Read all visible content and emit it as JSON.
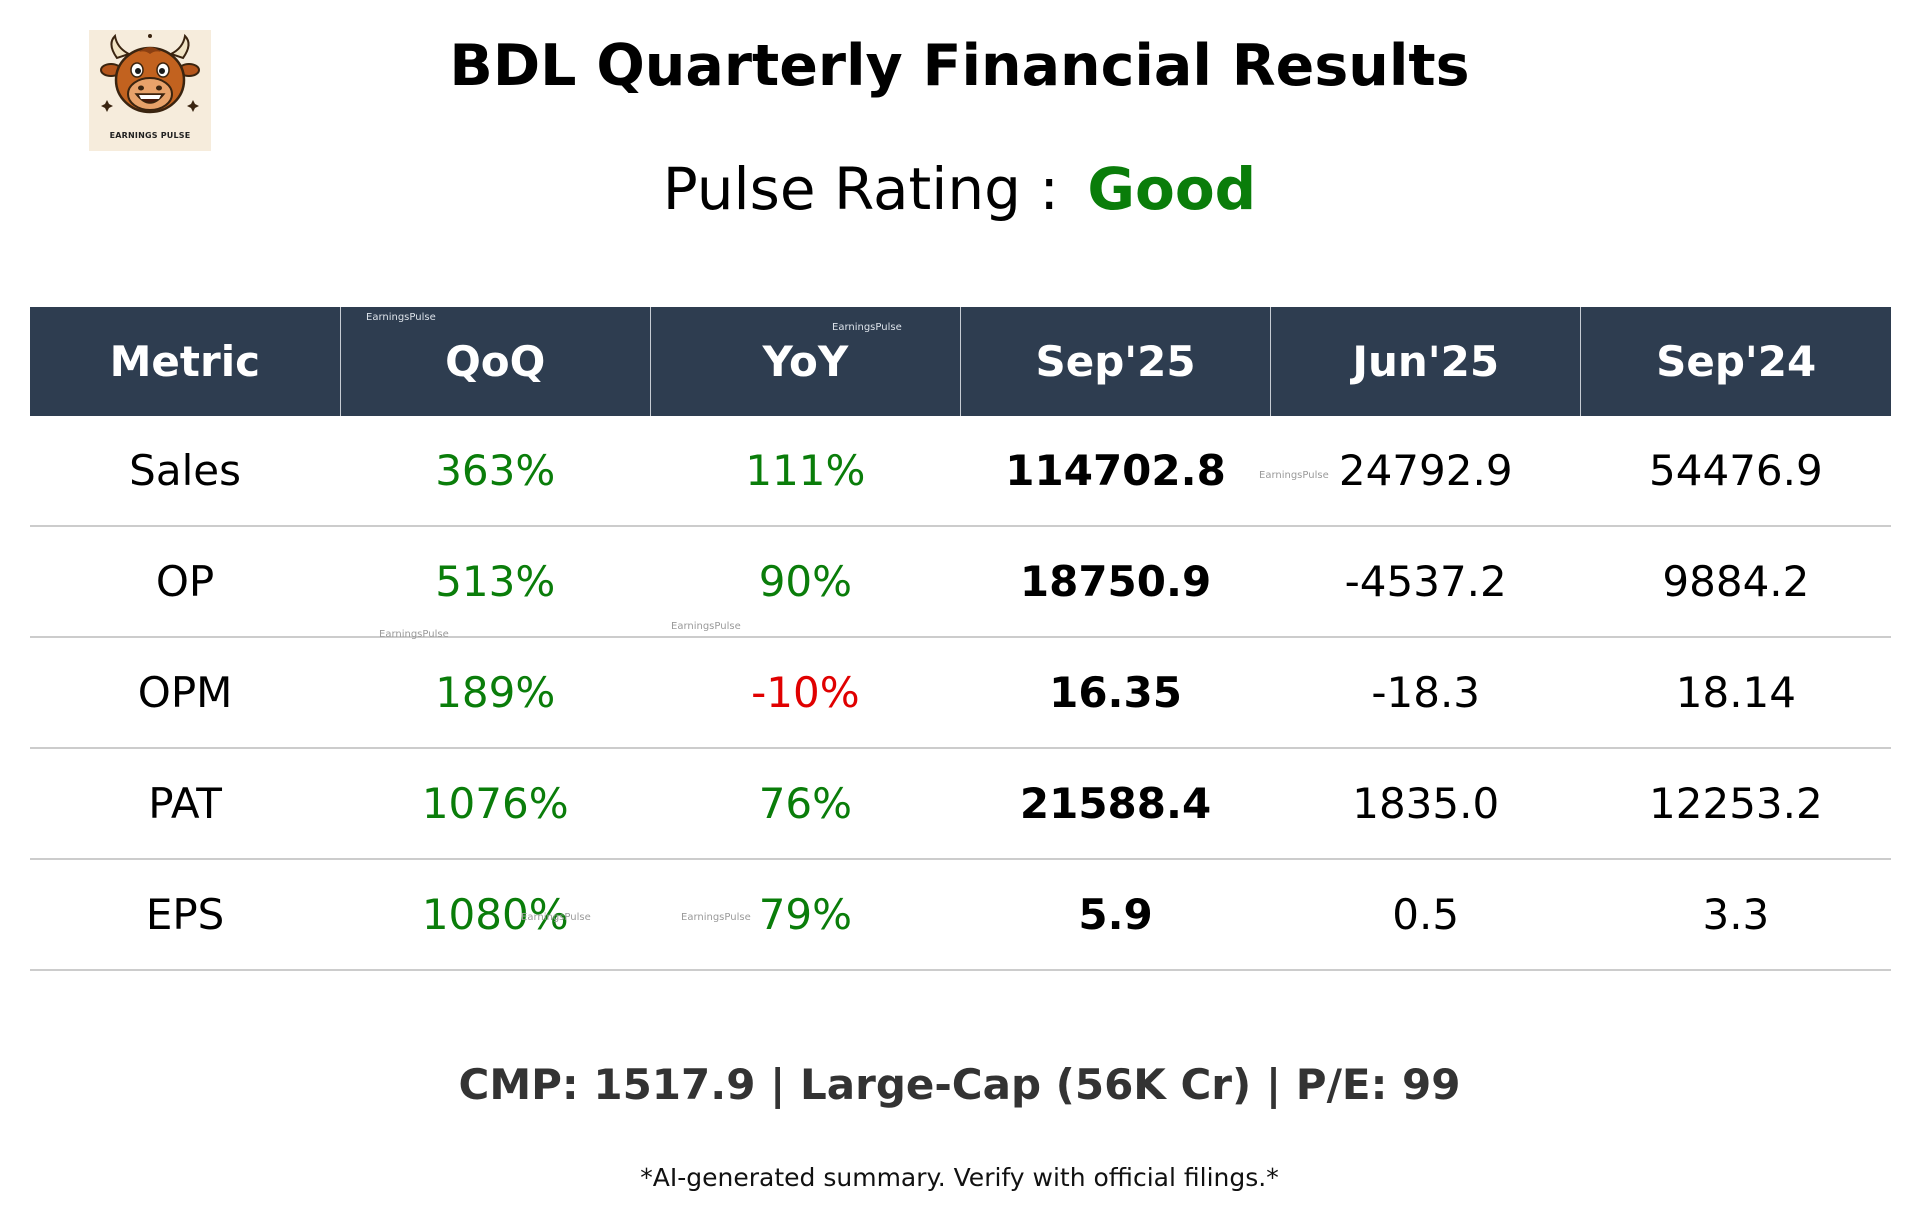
{
  "logo": {
    "text": "EARNINGS PULSE",
    "icon": "bull-mascot-icon"
  },
  "title": "BDL Quarterly Financial Results",
  "rating": {
    "label": "Pulse Rating :",
    "value": "Good",
    "value_color": "#0a7d0a"
  },
  "table": {
    "headers": [
      "Metric",
      "QoQ",
      "YoY",
      "Sep'25",
      "Jun'25",
      "Sep'24"
    ],
    "header_bg": "#2e3d50",
    "rows": [
      {
        "metric": "Sales",
        "qoq": "363%",
        "yoy": "111%",
        "sep25": "114702.8",
        "jun25": "24792.9",
        "sep24": "54476.9",
        "qoq_status": "positive",
        "yoy_status": "positive"
      },
      {
        "metric": "OP",
        "qoq": "513%",
        "yoy": "90%",
        "sep25": "18750.9",
        "jun25": "-4537.2",
        "sep24": "9884.2",
        "qoq_status": "positive",
        "yoy_status": "positive"
      },
      {
        "metric": "OPM",
        "qoq": "189%",
        "yoy": "-10%",
        "sep25": "16.35",
        "jun25": "-18.3",
        "sep24": "18.14",
        "qoq_status": "positive",
        "yoy_status": "negative"
      },
      {
        "metric": "PAT",
        "qoq": "1076%",
        "yoy": "76%",
        "sep25": "21588.4",
        "jun25": "1835.0",
        "sep24": "12253.2",
        "qoq_status": "positive",
        "yoy_status": "positive"
      },
      {
        "metric": "EPS",
        "qoq": "1080%",
        "yoy": "79%",
        "sep25": "5.9",
        "jun25": "0.5",
        "sep24": "3.3",
        "qoq_status": "positive",
        "yoy_status": "positive"
      }
    ],
    "positive_color": "#0a7d0a",
    "negative_color": "#e00000"
  },
  "watermark": "EarningsPulse",
  "footer": {
    "cmp": "CMP: 1517.9 | Large-Cap (56K Cr) | P/E: 99",
    "disclaimer": "*AI-generated summary. Verify with official filings.*"
  }
}
